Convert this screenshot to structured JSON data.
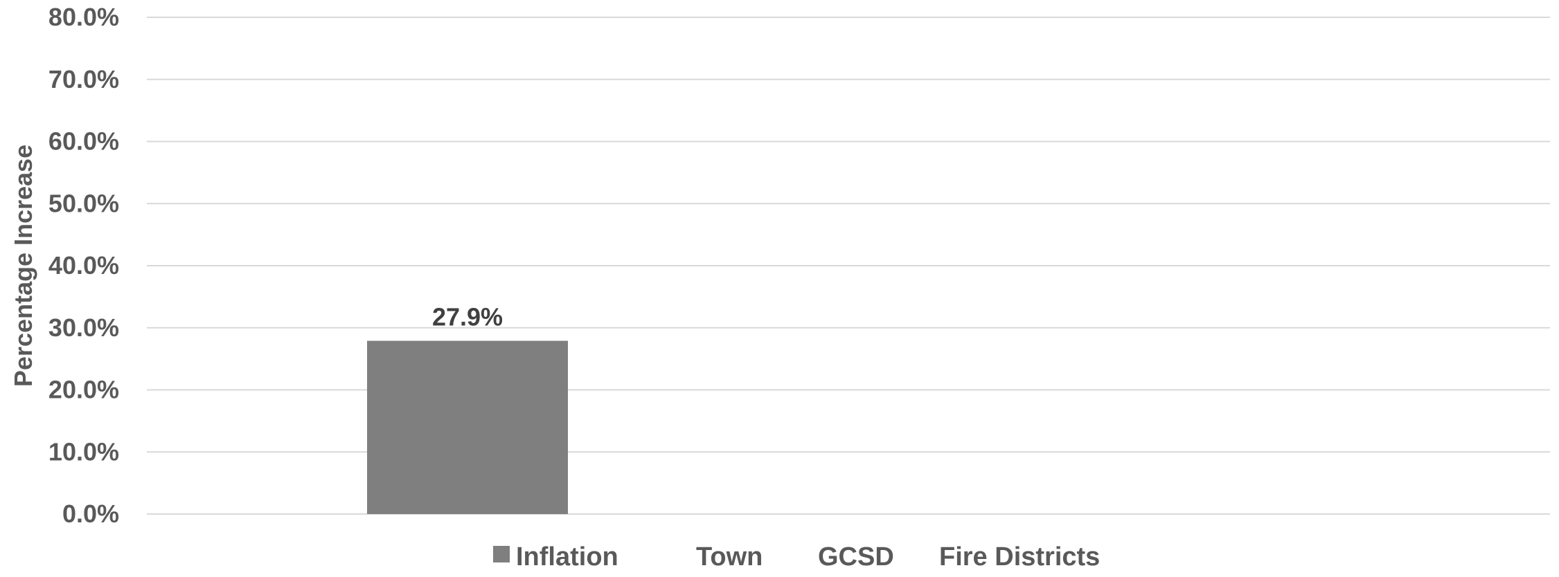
{
  "chart_data": {
    "type": "bar",
    "ylabel": "Percentage Increase",
    "ylim": [
      0,
      80
    ],
    "y_ticks": [
      "0.0%",
      "10.0%",
      "20.0%",
      "30.0%",
      "40.0%",
      "50.0%",
      "60.0%",
      "70.0%",
      "80.0%"
    ],
    "grid": true,
    "legend_position": "bottom",
    "series": [
      {
        "name": "Inflation",
        "values": [
          27.9
        ],
        "labels": [
          "27.9%"
        ],
        "color": "#7f7f7f"
      },
      {
        "name": "Town",
        "values": [],
        "labels": [],
        "color": "#a5a5a5"
      },
      {
        "name": "GCSD",
        "values": [],
        "labels": [],
        "color": "#bfbfbf"
      },
      {
        "name": "Fire Districts",
        "values": [],
        "labels": [],
        "color": "#d9d9d9"
      }
    ]
  }
}
